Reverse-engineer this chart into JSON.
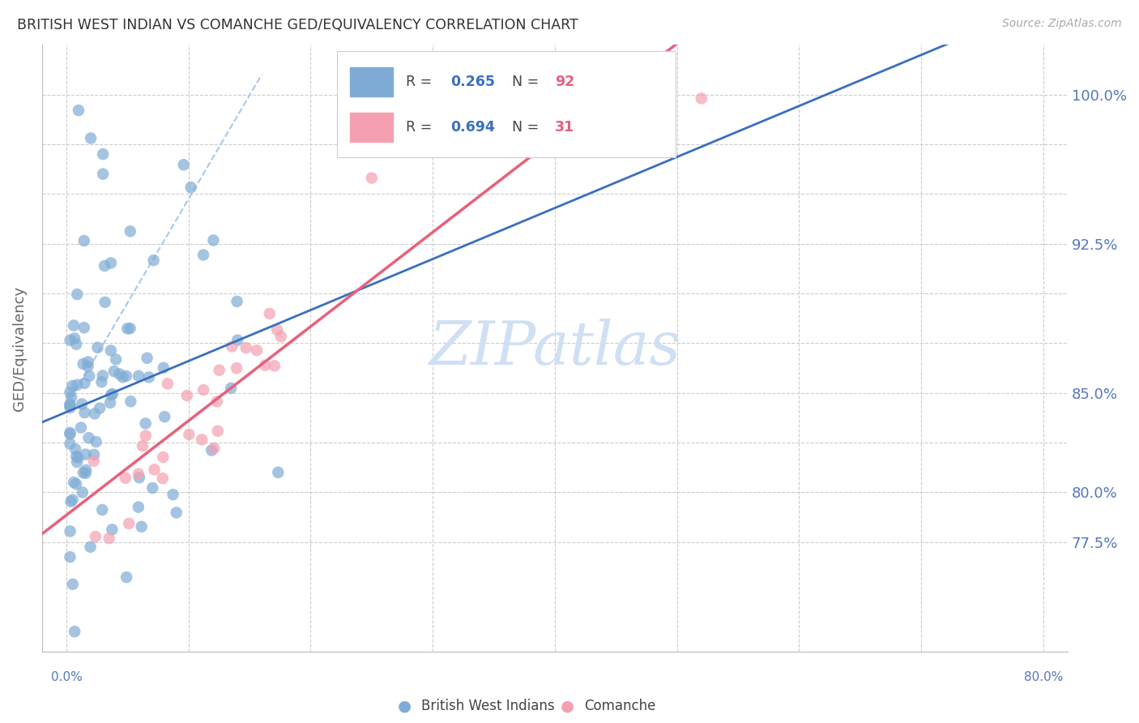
{
  "title": "BRITISH WEST INDIAN VS COMANCHE GED/EQUIVALENCY CORRELATION CHART",
  "source": "Source: ZipAtlas.com",
  "ylabel": "GED/Equivalency",
  "blue_R": 0.265,
  "blue_N": 92,
  "pink_R": 0.694,
  "pink_N": 31,
  "blue_color": "#7facd6",
  "pink_color": "#f4a0b0",
  "blue_line_color": "#3a6fbf",
  "pink_line_color": "#e8607a",
  "blue_dash_color": "#a8c8e8",
  "background_color": "#ffffff",
  "grid_color": "#cccccc",
  "title_color": "#333333",
  "axis_label_color": "#5577bb",
  "watermark_color": "#d0e0f4",
  "ylim": [
    0.72,
    1.025
  ],
  "xlim": [
    -0.002,
    0.082
  ],
  "ytick_positions": [
    0.775,
    0.8,
    0.825,
    0.85,
    0.875,
    0.9,
    0.925,
    0.95,
    0.975,
    1.0
  ],
  "ytick_labels": [
    "77.5%",
    "80.0%",
    "",
    "85.0%",
    "",
    "",
    "92.5%",
    "",
    "",
    "100.0%"
  ]
}
